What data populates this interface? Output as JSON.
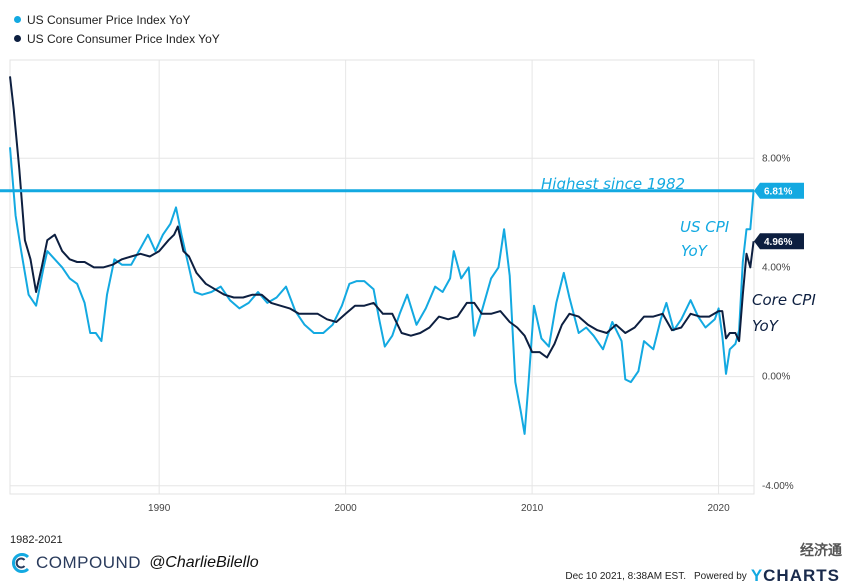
{
  "legend": [
    {
      "name": "US Consumer Price Index YoY",
      "color": "#13a9e1"
    },
    {
      "name": "US Core Consumer Price Index YoY",
      "color": "#0d1f40"
    }
  ],
  "annotations": {
    "highest": "Highest since 1982",
    "cpi_label_line1": "US CPI",
    "cpi_label_line2": "YoY",
    "core_label_line1": "Core CPI",
    "core_label_line2": "YoY"
  },
  "badges": {
    "cpi": "6.81%",
    "core": "4.96%"
  },
  "footer": {
    "range": "1982-2021",
    "brand": "COMPOUND",
    "handle": "@CharlieBilello",
    "timestamp": "Dec 10 2021, 8:38AM EST.",
    "powered_by": "Powered by",
    "ycharts_y": "Y",
    "ycharts_rest": "CHARTS",
    "watermark": "经济通"
  },
  "colors": {
    "cpi": "#13a9e1",
    "core": "#0d1f40",
    "highline": "#13a9e1"
  },
  "chart_data": {
    "type": "line",
    "title": "",
    "x_ticks": [
      "1990",
      "2000",
      "2010",
      "2020"
    ],
    "y_ticks": [
      "8.00%",
      "4.00%",
      "0.00%",
      "-4.00%"
    ],
    "xlim": [
      1982.0,
      2021.9
    ],
    "ylim": [
      -4.3,
      11.6
    ],
    "reference_line": {
      "y": 6.81,
      "label": "Highest since 1982"
    },
    "series": [
      {
        "name": "US Consumer Price Index YoY",
        "color": "#13a9e1",
        "x": [
          1982.0,
          1982.3,
          1982.6,
          1983.0,
          1983.4,
          1983.8,
          1984.0,
          1984.4,
          1984.8,
          1985.2,
          1985.6,
          1986.0,
          1986.3,
          1986.6,
          1986.9,
          1987.2,
          1987.6,
          1988.0,
          1988.5,
          1989.0,
          1989.4,
          1989.8,
          1990.2,
          1990.6,
          1990.9,
          1991.2,
          1991.5,
          1991.9,
          1992.3,
          1992.8,
          1993.3,
          1993.8,
          1994.3,
          1994.8,
          1995.3,
          1995.8,
          1996.3,
          1996.8,
          1997.3,
          1997.8,
          1998.3,
          1998.8,
          1999.3,
          1999.8,
          2000.2,
          2000.6,
          2001.0,
          2001.5,
          2001.8,
          2002.1,
          2002.5,
          2002.9,
          2003.3,
          2003.8,
          2004.3,
          2004.8,
          2005.2,
          2005.6,
          2005.8,
          2006.2,
          2006.6,
          2006.9,
          2007.3,
          2007.8,
          2008.2,
          2008.5,
          2008.8,
          2009.1,
          2009.4,
          2009.6,
          2009.8,
          2010.1,
          2010.5,
          2010.9,
          2011.3,
          2011.7,
          2012.0,
          2012.5,
          2012.9,
          2013.3,
          2013.8,
          2014.3,
          2014.8,
          2015.0,
          2015.3,
          2015.7,
          2016.0,
          2016.5,
          2016.9,
          2017.2,
          2017.6,
          2018.0,
          2018.5,
          2018.9,
          2019.3,
          2019.8,
          2020.0,
          2020.2,
          2020.4,
          2020.6,
          2020.9,
          2021.1,
          2021.3,
          2021.5,
          2021.7,
          2021.88
        ],
        "values": [
          8.4,
          5.9,
          4.6,
          3.0,
          2.6,
          4.0,
          4.6,
          4.3,
          4.0,
          3.6,
          3.4,
          2.7,
          1.6,
          1.6,
          1.3,
          3.0,
          4.3,
          4.1,
          4.1,
          4.7,
          5.2,
          4.6,
          5.2,
          5.6,
          6.2,
          5.2,
          4.3,
          3.1,
          3.0,
          3.1,
          3.3,
          2.8,
          2.5,
          2.7,
          3.1,
          2.7,
          2.9,
          3.3,
          2.4,
          1.9,
          1.6,
          1.6,
          1.9,
          2.6,
          3.4,
          3.5,
          3.5,
          3.2,
          2.1,
          1.1,
          1.5,
          2.3,
          3.0,
          1.9,
          2.5,
          3.3,
          3.1,
          3.6,
          4.6,
          3.6,
          4.0,
          1.5,
          2.4,
          3.6,
          4.0,
          5.4,
          3.7,
          -0.2,
          -1.3,
          -2.1,
          -0.3,
          2.6,
          1.4,
          1.1,
          2.7,
          3.8,
          2.9,
          1.6,
          1.8,
          1.5,
          1.0,
          2.0,
          1.3,
          -0.1,
          -0.2,
          0.2,
          1.3,
          1.0,
          2.1,
          2.7,
          1.7,
          2.1,
          2.8,
          2.2,
          1.8,
          2.1,
          2.5,
          1.5,
          0.1,
          1.0,
          1.2,
          1.7,
          4.2,
          5.4,
          5.4,
          6.81
        ]
      },
      {
        "name": "US Core Consumer Price Index YoY",
        "color": "#0d1f40",
        "x": [
          1982.0,
          1982.2,
          1982.5,
          1982.8,
          1983.1,
          1983.4,
          1983.7,
          1984.0,
          1984.4,
          1984.8,
          1985.2,
          1985.6,
          1986.0,
          1986.5,
          1987.0,
          1987.5,
          1988.0,
          1988.5,
          1989.0,
          1989.5,
          1990.0,
          1990.5,
          1990.8,
          1991.0,
          1991.3,
          1991.6,
          1992.0,
          1992.5,
          1993.0,
          1993.5,
          1994.0,
          1994.5,
          1995.0,
          1995.5,
          1996.0,
          1996.5,
          1997.0,
          1997.5,
          1998.0,
          1998.5,
          1999.0,
          1999.5,
          2000.0,
          2000.5,
          2001.0,
          2001.5,
          2002.0,
          2002.5,
          2003.0,
          2003.5,
          2004.0,
          2004.5,
          2005.0,
          2005.5,
          2006.0,
          2006.5,
          2006.9,
          2007.3,
          2007.8,
          2008.3,
          2008.8,
          2009.2,
          2009.6,
          2010.0,
          2010.4,
          2010.8,
          2011.2,
          2011.6,
          2012.0,
          2012.5,
          2013.0,
          2013.5,
          2014.0,
          2014.5,
          2015.0,
          2015.5,
          2016.0,
          2016.5,
          2017.0,
          2017.5,
          2018.0,
          2018.5,
          2019.0,
          2019.5,
          2020.0,
          2020.2,
          2020.4,
          2020.6,
          2020.9,
          2021.1,
          2021.3,
          2021.5,
          2021.7,
          2021.88
        ],
        "values": [
          11.0,
          9.8,
          7.6,
          5.0,
          4.3,
          3.1,
          4.0,
          5.0,
          5.2,
          4.6,
          4.3,
          4.2,
          4.2,
          4.0,
          4.0,
          4.1,
          4.3,
          4.4,
          4.5,
          4.4,
          4.6,
          5.0,
          5.2,
          5.5,
          4.6,
          4.4,
          3.8,
          3.4,
          3.2,
          3.0,
          2.9,
          2.9,
          3.0,
          3.0,
          2.7,
          2.6,
          2.5,
          2.3,
          2.3,
          2.3,
          2.1,
          2.0,
          2.3,
          2.6,
          2.6,
          2.7,
          2.3,
          2.3,
          1.6,
          1.5,
          1.6,
          1.8,
          2.2,
          2.1,
          2.2,
          2.7,
          2.7,
          2.3,
          2.3,
          2.4,
          2.0,
          1.8,
          1.5,
          0.9,
          0.9,
          0.7,
          1.2,
          1.9,
          2.3,
          2.2,
          1.9,
          1.7,
          1.6,
          1.9,
          1.6,
          1.8,
          2.2,
          2.2,
          2.3,
          1.7,
          1.8,
          2.3,
          2.2,
          2.2,
          2.4,
          2.4,
          1.4,
          1.6,
          1.6,
          1.3,
          3.0,
          4.5,
          4.0,
          4.96
        ]
      }
    ]
  }
}
